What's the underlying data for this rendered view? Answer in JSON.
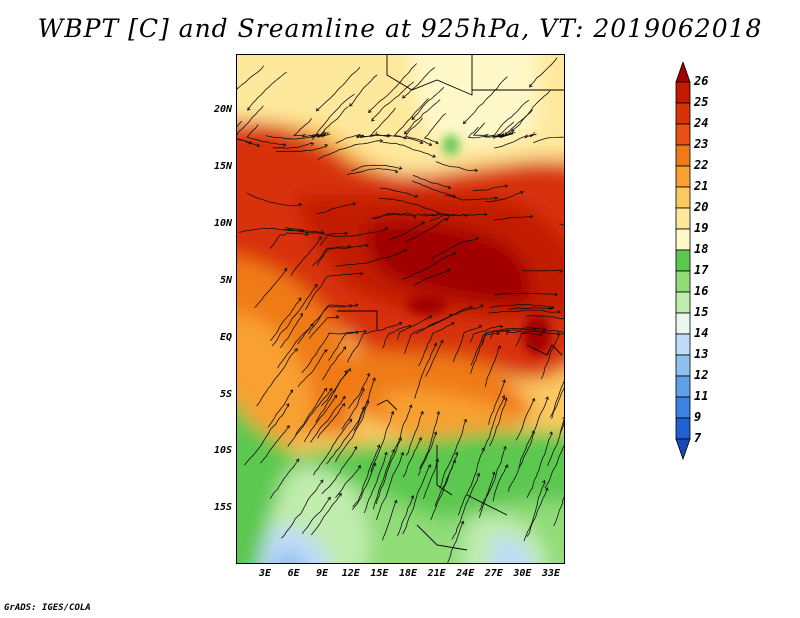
{
  "title": "WBPT [C] and Sreamline at 925hPa, VT: 2019062018",
  "credit": "GrADS: IGES/COLA",
  "map": {
    "lat_labels": [
      "20N",
      "15N",
      "10N",
      "5N",
      "EQ",
      "5S",
      "10S",
      "15S"
    ],
    "lon_labels": [
      "3E",
      "6E",
      "9E",
      "12E",
      "15E",
      "18E",
      "21E",
      "24E",
      "27E",
      "30E",
      "33E"
    ],
    "lat_range": [
      -20,
      24
    ],
    "lon_range": [
      0,
      34
    ]
  },
  "colorbar": {
    "labels": [
      "26",
      "25",
      "24",
      "23",
      "22",
      "21",
      "20",
      "19",
      "18",
      "17",
      "16",
      "15",
      "14",
      "13",
      "12",
      "11",
      "9",
      "7"
    ],
    "colors": [
      "#a00000",
      "#c21a00",
      "#d83208",
      "#e85014",
      "#f07a18",
      "#f8a030",
      "#fcc860",
      "#fee89c",
      "#fff8c8",
      "#5cc850",
      "#90dc78",
      "#c0ecae",
      "#e8f8f0",
      "#c0dcf8",
      "#90c0f0",
      "#60a0e8",
      "#3c82e0",
      "#2060d0",
      "#1848b8"
    ]
  }
}
